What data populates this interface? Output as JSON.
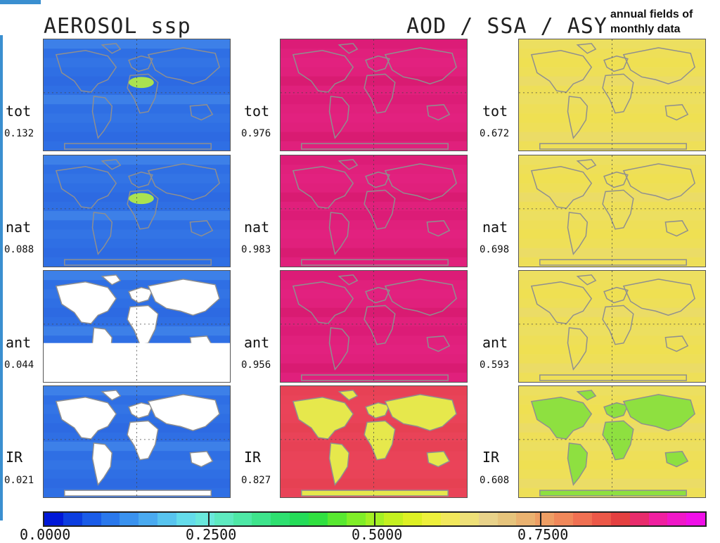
{
  "header": {
    "left_title": "AEROSOL ssp",
    "right_title": "AOD / SSA / ASY",
    "note_line1": "annual fields of",
    "note_line2": "monthly data"
  },
  "columns": [
    {
      "name": "AOD",
      "rows": [
        {
          "label": "tot",
          "value": "0.132"
        },
        {
          "label": "nat",
          "value": "0.088"
        },
        {
          "label": "ant",
          "value": "0.044"
        },
        {
          "label": "IR",
          "value": "0.021"
        }
      ]
    },
    {
      "name": "SSA",
      "rows": [
        {
          "label": "tot",
          "value": "0.976"
        },
        {
          "label": "nat",
          "value": "0.983"
        },
        {
          "label": "ant",
          "value": "0.956"
        },
        {
          "label": "IR",
          "value": "0.827"
        }
      ]
    },
    {
      "name": "ASY",
      "rows": [
        {
          "label": "tot",
          "value": "0.672"
        },
        {
          "label": "nat",
          "value": "0.698"
        },
        {
          "label": "ant",
          "value": "0.593"
        },
        {
          "label": "IR",
          "value": "0.608"
        }
      ]
    }
  ],
  "colorbar": {
    "ticks": [
      "0.0000",
      "0.2500",
      "0.5000",
      "0.7500"
    ],
    "colors": [
      "#0018d8",
      "#0c3ee0",
      "#1a5ce8",
      "#2a78ec",
      "#3a92ef",
      "#4aaaf0",
      "#58c4ef",
      "#64dceb",
      "#6ae8dc",
      "#5eeac0",
      "#4ee8a6",
      "#3ee48c",
      "#2ee070",
      "#24dc58",
      "#30e040",
      "#58e830",
      "#80ee28",
      "#a4f024",
      "#c4f020",
      "#def024",
      "#eef03c",
      "#f2e85c",
      "#eee078",
      "#e8d28a",
      "#e6c47c",
      "#eab270",
      "#ee9e64",
      "#f0885a",
      "#f07052",
      "#ec5848",
      "#e44040",
      "#e82c6c",
      "#f020a0",
      "#f018c8",
      "#f010e8"
    ]
  },
  "fields": {
    "aod_bg": "#2f6fe4",
    "ssa_bg": "#e0207c",
    "asy_bg": "#eedf58",
    "coast": "#8f8f8f"
  }
}
